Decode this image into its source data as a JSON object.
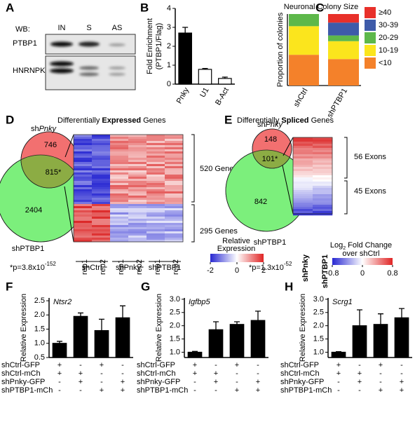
{
  "blot": {
    "label": "A",
    "wb": "WB:",
    "lanes": [
      "IN",
      "S",
      "AS"
    ],
    "proteins": [
      "PTBP1",
      "HNRNPK"
    ]
  },
  "chart_data": [
    {
      "panel": "B",
      "type": "bar",
      "ylabel": [
        "Fold Enrichment",
        "(PTBP1/Flag)"
      ],
      "categories": [
        "Pnky",
        "U1",
        "B-Act"
      ],
      "values": [
        2.7,
        0.78,
        0.3
      ],
      "errors": [
        0.3,
        0.05,
        0.07
      ],
      "colors": [
        "#000000",
        "#ffffff",
        "#ffffff"
      ],
      "ylim": [
        0,
        4
      ],
      "yticks": [
        0,
        1,
        2,
        3,
        4
      ]
    },
    {
      "panel": "C",
      "type": "stacked_bar",
      "title": "Neuronal Colony Size",
      "ylabel": "Proportion of colonies",
      "categories": [
        "shCtrl",
        "shPTBP1"
      ],
      "ylim": [
        0,
        1
      ],
      "series": [
        {
          "name": "<10",
          "color": "#f4812a",
          "values": [
            0.43,
            0.37
          ]
        },
        {
          "name": "10-19",
          "color": "#fbe51d",
          "values": [
            0.4,
            0.25
          ]
        },
        {
          "name": "20-29",
          "color": "#5db84a",
          "values": [
            0.17,
            0.08
          ]
        },
        {
          "name": "30-39",
          "color": "#3e5ba9",
          "values": [
            0,
            0.18
          ]
        },
        {
          "name": "≥40",
          "color": "#e8302a",
          "values": [
            0,
            0.12
          ]
        }
      ]
    },
    {
      "panel": "F",
      "type": "bar",
      "title": "Ntsr2",
      "ylabel": "Relative Expression",
      "values": [
        1.0,
        1.95,
        1.45,
        1.9
      ],
      "errors": [
        0.07,
        0.12,
        0.4,
        0.42
      ],
      "color": "#000000",
      "ylim": [
        0.5,
        2.6
      ],
      "yticks": [
        0.5,
        {
          "value": 1,
          "label": "1.0"
        },
        1.5,
        {
          "value": 2,
          "label": "2.0"
        },
        2.5
      ],
      "conditions": [
        "shCtrl-GFP",
        "shCtrl-mCh",
        "shPnky-GFP",
        "shPTBP1-mCh"
      ],
      "design": [
        [
          "+",
          "-",
          "+",
          "-"
        ],
        [
          "+",
          "+",
          "-",
          "-"
        ],
        [
          "-",
          "+",
          "-",
          "+"
        ],
        [
          "-",
          "-",
          "+",
          "+"
        ]
      ]
    },
    {
      "panel": "G",
      "type": "bar",
      "title": "Igfbp5",
      "ylabel": "Relative Expression",
      "values": [
        1.0,
        1.85,
        2.05,
        2.2
      ],
      "errors": [
        0.03,
        0.3,
        0.1,
        0.35
      ],
      "color": "#000000",
      "ylim": [
        0.8,
        3.05
      ],
      "yticks": [
        {
          "value": 1,
          "label": "1.0"
        },
        1.5,
        {
          "value": 2,
          "label": "2.0"
        },
        2.5,
        {
          "value": 3,
          "label": "3.0"
        }
      ],
      "conditions": [
        "shCtrl-GFP",
        "shCtrl-mCh",
        "shPnky-GFP",
        "shPTBP1-mCh"
      ],
      "design": [
        [
          "+",
          "-",
          "+",
          "-"
        ],
        [
          "+",
          "+",
          "-",
          "-"
        ],
        [
          "-",
          "+",
          "-",
          "+"
        ],
        [
          "-",
          "-",
          "+",
          "+"
        ]
      ]
    },
    {
      "panel": "H",
      "type": "bar",
      "title": "Scrg1",
      "ylabel": "Relative Expression",
      "values": [
        1.0,
        2.0,
        2.05,
        2.3
      ],
      "errors": [
        0.02,
        0.6,
        0.4,
        0.35
      ],
      "color": "#000000",
      "ylim": [
        0.8,
        3.05
      ],
      "yticks": [
        {
          "value": 1,
          "label": "1.0"
        },
        1.5,
        {
          "value": 2,
          "label": "2.0"
        },
        2.5,
        {
          "value": 3,
          "label": "3.0"
        }
      ],
      "conditions": [
        "shCtrl-GFP",
        "shCtrl-mCh",
        "shPnky-GFP",
        "shPTBP1-mCh"
      ],
      "design": [
        [
          "+",
          "-",
          "+",
          "-"
        ],
        [
          "+",
          "+",
          "-",
          "-"
        ],
        [
          "-",
          "+",
          "-",
          "+"
        ],
        [
          "-",
          "-",
          "+",
          "+"
        ]
      ]
    }
  ],
  "expressed": {
    "label": "D",
    "title": [
      "Differentially ",
      "Expressed",
      " Genes"
    ],
    "set_a": [
      "sh",
      "Pnky"
    ],
    "set_b": "shPTBP1",
    "only_a": 746,
    "both": "815*",
    "only_b": 2404,
    "pvalue": [
      "*p=3.8x10",
      "-152"
    ],
    "heatmap": {
      "blocks": [
        "520 Genes",
        "295 Genes"
      ],
      "columns": [
        "rep1",
        "rep2",
        "rep1",
        "rep2",
        "rep1",
        "rep2"
      ],
      "groups": [
        "shCtrl",
        "shPnky",
        "shPTBP1"
      ],
      "legend": [
        "Relative",
        "Expression"
      ],
      "ticks": [
        -2,
        0,
        2
      ]
    }
  },
  "spliced": {
    "label": "E",
    "title": [
      "Differentially ",
      "Spliced",
      " Genes"
    ],
    "set_a": [
      "sh",
      "Pnky"
    ],
    "set_b": "shPTBP1",
    "only_a": 148,
    "both": "101*",
    "only_b": 842,
    "pvalue": [
      "*p=1.3x10",
      "-52"
    ],
    "heatmap": {
      "blocks": [
        "56 Exons",
        "45 Exons"
      ],
      "columns": [
        "shPnky",
        "shPTBP1"
      ],
      "legend": [
        "Log",
        "2",
        " Fold Change"
      ],
      "legend2": "over shCtrl",
      "ticks": [
        -0.8,
        0,
        0.8
      ]
    }
  }
}
